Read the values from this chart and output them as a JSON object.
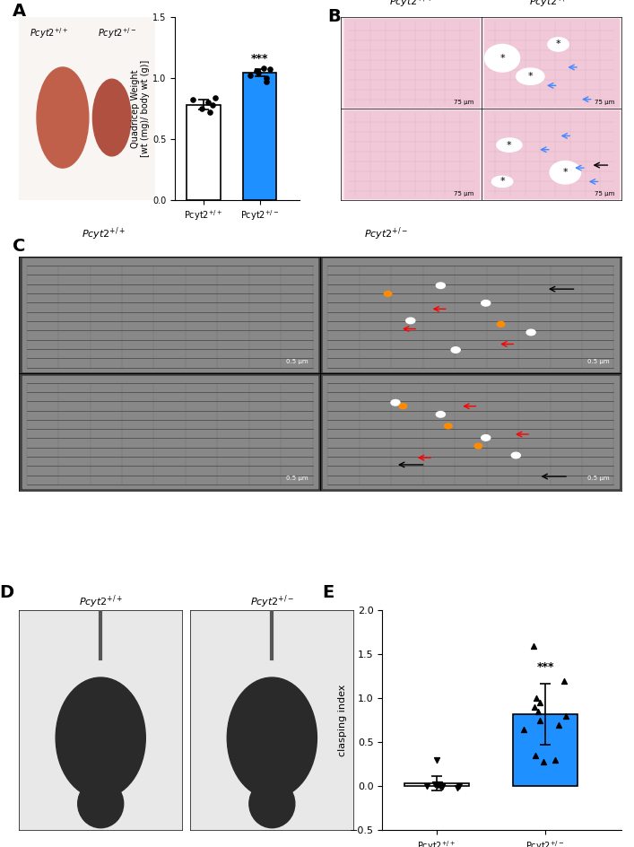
{
  "panel_A_bar": {
    "categories": [
      "Pcyt2$^{+/+}$",
      "Pcyt2$^{+/-}$"
    ],
    "values": [
      0.78,
      1.04
    ],
    "errors": [
      0.04,
      0.03
    ],
    "colors": [
      "#ffffff",
      "#1e90ff"
    ],
    "ylabel": "Quadricep Weight\n[wt (mg)/ body wt (g)]",
    "ylim": [
      0,
      1.5
    ],
    "yticks": [
      0.0,
      0.5,
      1.0,
      1.5
    ],
    "significance": "***",
    "dots_wt": [
      0.72,
      0.75,
      0.78,
      0.8,
      0.82,
      0.84
    ],
    "dots_ko": [
      0.97,
      1.0,
      1.02,
      1.04,
      1.06,
      1.07,
      1.08
    ]
  },
  "panel_E_bar": {
    "categories": [
      "Pcyt2$^{+/+}$",
      "Pcyt2$^{+/-}$"
    ],
    "values": [
      0.03,
      0.82
    ],
    "errors": [
      0.08,
      0.35
    ],
    "colors": [
      "#ffffff",
      "#1e90ff"
    ],
    "ylabel": "clasping index",
    "ylim": [
      -0.5,
      2.0
    ],
    "yticks": [
      -0.5,
      0.0,
      0.5,
      1.0,
      1.5,
      2.0
    ],
    "significance": "***",
    "dots_wt": [
      0.3,
      0.02,
      0.01,
      0.0,
      -0.01,
      0.0,
      0.0,
      0.01,
      0.02,
      0.0,
      -0.02
    ],
    "dots_ko": [
      1.6,
      1.0,
      0.95,
      0.9,
      0.85,
      0.8,
      0.75,
      0.7,
      0.65,
      0.35,
      0.3,
      0.28,
      1.2
    ]
  },
  "label_fontsize": 12,
  "tick_fontsize": 9,
  "title_color": "#000000",
  "bar_edge_color": "#000000",
  "panel_label_fontsize": 14
}
